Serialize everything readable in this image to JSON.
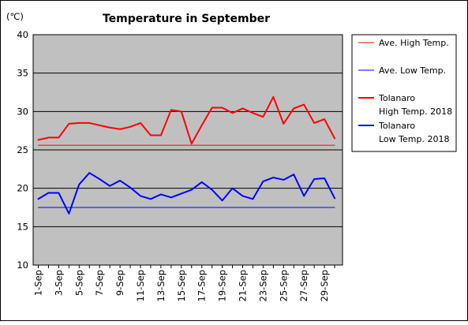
{
  "chart_data": {
    "type": "line",
    "title": "Temperature in September",
    "unit_label": "(℃)",
    "ylim": [
      10,
      40
    ],
    "y_ticks": [
      "10",
      "15",
      "20",
      "25",
      "30",
      "35",
      "40"
    ],
    "x_tick_labels": [
      "1-Sep",
      "3-Sep",
      "5-Sep",
      "7-Sep",
      "9-Sep",
      "11-Sep",
      "13-Sep",
      "15-Sep",
      "17-Sep",
      "19-Sep",
      "21-Sep",
      "23-Sep",
      "25-Sep",
      "27-Sep",
      "29-Sep"
    ],
    "x": [
      1,
      2,
      3,
      4,
      5,
      6,
      7,
      8,
      9,
      10,
      11,
      12,
      13,
      14,
      15,
      16,
      17,
      18,
      19,
      20,
      21,
      22,
      23,
      24,
      25,
      26,
      27,
      28,
      29,
      30
    ],
    "grid": true,
    "plot_background": "#c0c0c0",
    "legend_position": "right",
    "series": [
      {
        "name": "Ave. High Temp.",
        "color": "#ff0000",
        "stroke": "thin",
        "values": [
          25.6,
          25.6,
          25.6,
          25.6,
          25.6,
          25.6,
          25.6,
          25.6,
          25.6,
          25.6,
          25.6,
          25.6,
          25.6,
          25.6,
          25.6,
          25.6,
          25.6,
          25.6,
          25.6,
          25.6,
          25.6,
          25.6,
          25.6,
          25.6,
          25.6,
          25.6,
          25.6,
          25.6,
          25.6,
          25.6
        ]
      },
      {
        "name": "Ave. Low Temp.",
        "color": "#0000ff",
        "stroke": "thin",
        "values": [
          17.5,
          17.5,
          17.5,
          17.5,
          17.5,
          17.5,
          17.5,
          17.5,
          17.5,
          17.5,
          17.5,
          17.5,
          17.5,
          17.5,
          17.5,
          17.5,
          17.5,
          17.5,
          17.5,
          17.5,
          17.5,
          17.5,
          17.5,
          17.5,
          17.5,
          17.5,
          17.5,
          17.5,
          17.5,
          17.5
        ]
      },
      {
        "name": "Tolanaro High Temp. 2018",
        "name_lines": [
          "Tolanaro",
          "High Temp. 2018"
        ],
        "color": "#ff0000",
        "stroke": "thick",
        "values": [
          26.3,
          26.6,
          26.6,
          28.4,
          28.5,
          28.5,
          28.2,
          27.9,
          27.7,
          28.0,
          28.5,
          26.9,
          26.9,
          30.2,
          30.0,
          25.8,
          28.2,
          30.5,
          30.5,
          29.8,
          30.4,
          29.8,
          29.3,
          31.9,
          28.4,
          30.4,
          30.9,
          28.5,
          29.0,
          26.5
        ]
      },
      {
        "name": "Tolanaro Low Temp. 2018",
        "name_lines": [
          "Tolanaro",
          "Low Temp. 2018"
        ],
        "color": "#0000ff",
        "stroke": "thick",
        "values": [
          18.6,
          19.4,
          19.4,
          16.7,
          20.5,
          22.0,
          21.2,
          20.3,
          21.0,
          20.1,
          19.0,
          18.6,
          19.2,
          18.8,
          19.3,
          19.8,
          20.8,
          19.8,
          18.4,
          20.0,
          19.0,
          18.6,
          20.9,
          21.4,
          21.1,
          21.8,
          19.0,
          21.2,
          21.3,
          18.7
        ]
      }
    ]
  }
}
